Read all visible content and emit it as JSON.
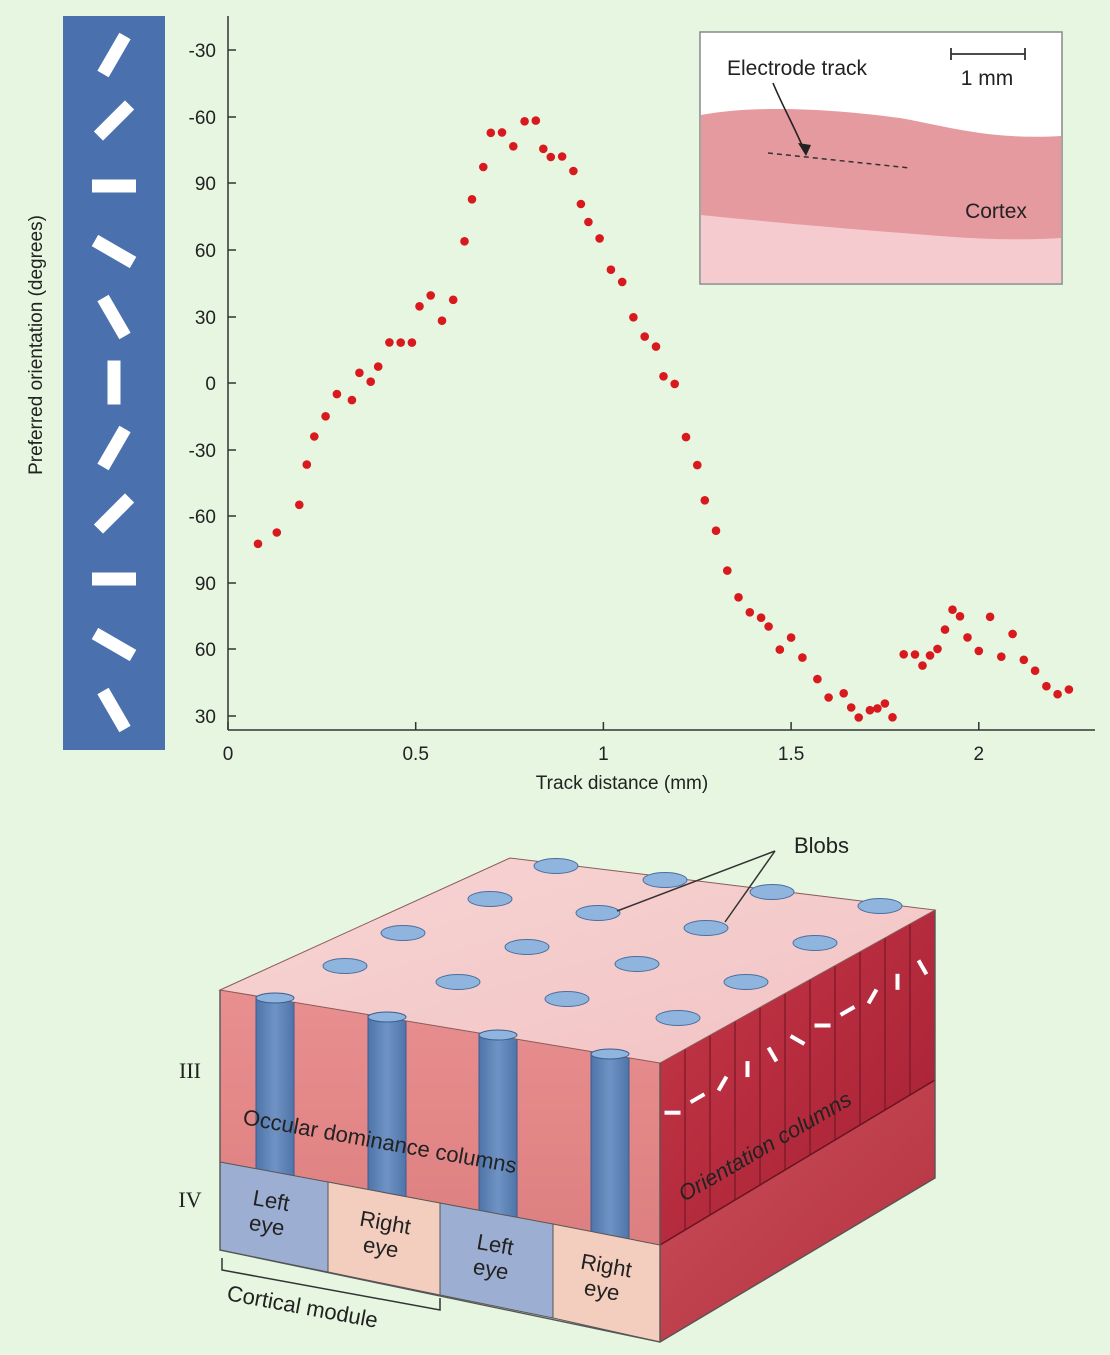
{
  "chart_data": {
    "type": "scatter",
    "xlabel": "Track distance (mm)",
    "ylabel": "Preferred orientation (degrees)",
    "x_ticks": [
      "0",
      "0.5",
      "1",
      "1.5",
      "2"
    ],
    "y_ticks": [
      "-30",
      "-60",
      "90",
      "60",
      "30",
      "0",
      "-30",
      "-60",
      "90",
      "60",
      "30"
    ],
    "xlim": [
      0,
      2.3
    ],
    "grid": false,
    "series": [
      {
        "color": "#d8191d",
        "x": [
          0.08,
          0.13,
          0.19,
          0.21,
          0.23,
          0.26,
          0.29,
          0.33,
          0.35,
          0.38,
          0.4,
          0.43,
          0.46,
          0.49,
          0.51,
          0.54,
          0.57,
          0.6,
          0.63,
          0.65,
          0.68,
          0.7,
          0.73,
          0.76,
          0.79,
          0.82,
          0.84,
          0.86,
          0.89,
          0.92,
          0.94,
          0.96,
          0.99,
          1.02,
          1.05,
          1.08,
          1.11,
          1.14,
          1.16,
          1.19,
          1.22,
          1.25,
          1.27,
          1.3,
          1.33,
          1.36,
          1.39,
          1.42,
          1.44,
          1.47,
          1.5,
          1.53,
          1.57,
          1.6,
          1.64,
          1.66,
          1.68,
          1.71,
          1.73,
          1.75,
          1.77,
          1.8,
          1.83,
          1.85,
          1.87,
          1.89,
          1.91,
          1.93,
          1.95,
          1.97,
          2.0,
          2.03,
          2.06,
          2.09,
          2.12,
          2.15,
          2.18,
          2.21,
          2.24
        ],
        "y": [
          -72.5,
          -67.4,
          -54.9,
          -36.8,
          -24.1,
          -15,
          -5,
          -7.7,
          4.6,
          0.6,
          7.4,
          18.3,
          18.2,
          18.2,
          34.6,
          39.5,
          28.1,
          37.5,
          63.9,
          82.8,
          97.4,
          112.8,
          113,
          106.7,
          118,
          118.3,
          105.6,
          101.9,
          102.1,
          95.6,
          80.7,
          72.6,
          65.2,
          51.1,
          45.6,
          29.6,
          20.9,
          16.4,
          3,
          -0.4,
          -24.4,
          -37,
          -52.9,
          -66.6,
          -84.6,
          -96.6,
          -103.4,
          -105.8,
          -109.8,
          -120.2,
          -114.8,
          -123.8,
          -133.5,
          -141.8,
          -139.9,
          -146.3,
          -150.8,
          -147.5,
          -146.7,
          -144.5,
          -150.7,
          -122.3,
          -122.4,
          -127.4,
          -122.8,
          -119.9,
          -111.2,
          -102.2,
          -105.2,
          -114.7,
          -120.8,
          -105.4,
          -123.4,
          -113.1,
          -124.8,
          -129.7,
          -136.7,
          -140.3,
          -138.2
        ]
      }
    ]
  },
  "orientation_bar": {
    "bar_color": "#4a70ae",
    "tick_color": "#ffffff",
    "angles": [
      -60,
      -45,
      0,
      30,
      60,
      90,
      -60,
      -45,
      0,
      30,
      60
    ]
  },
  "inset": {
    "electrode_label": "Electrode track",
    "scale_label": "1 mm",
    "cortex_label": "Cortex",
    "cortex_color": "#e59aa0"
  },
  "block": {
    "blobs_label": "Blobs",
    "layer_iii": "III",
    "layer_iv": "IV",
    "ocular_label": "Occular dominance columns",
    "orientation_label": "Orientation columns",
    "left_eye": [
      "Left",
      "eye"
    ],
    "right_eye": [
      "Right",
      "eye"
    ],
    "module_label": "Cortical module",
    "blob_color": "#8fb4dd",
    "column_color": "#5b80b3",
    "right_face_color": "#b8283c"
  }
}
